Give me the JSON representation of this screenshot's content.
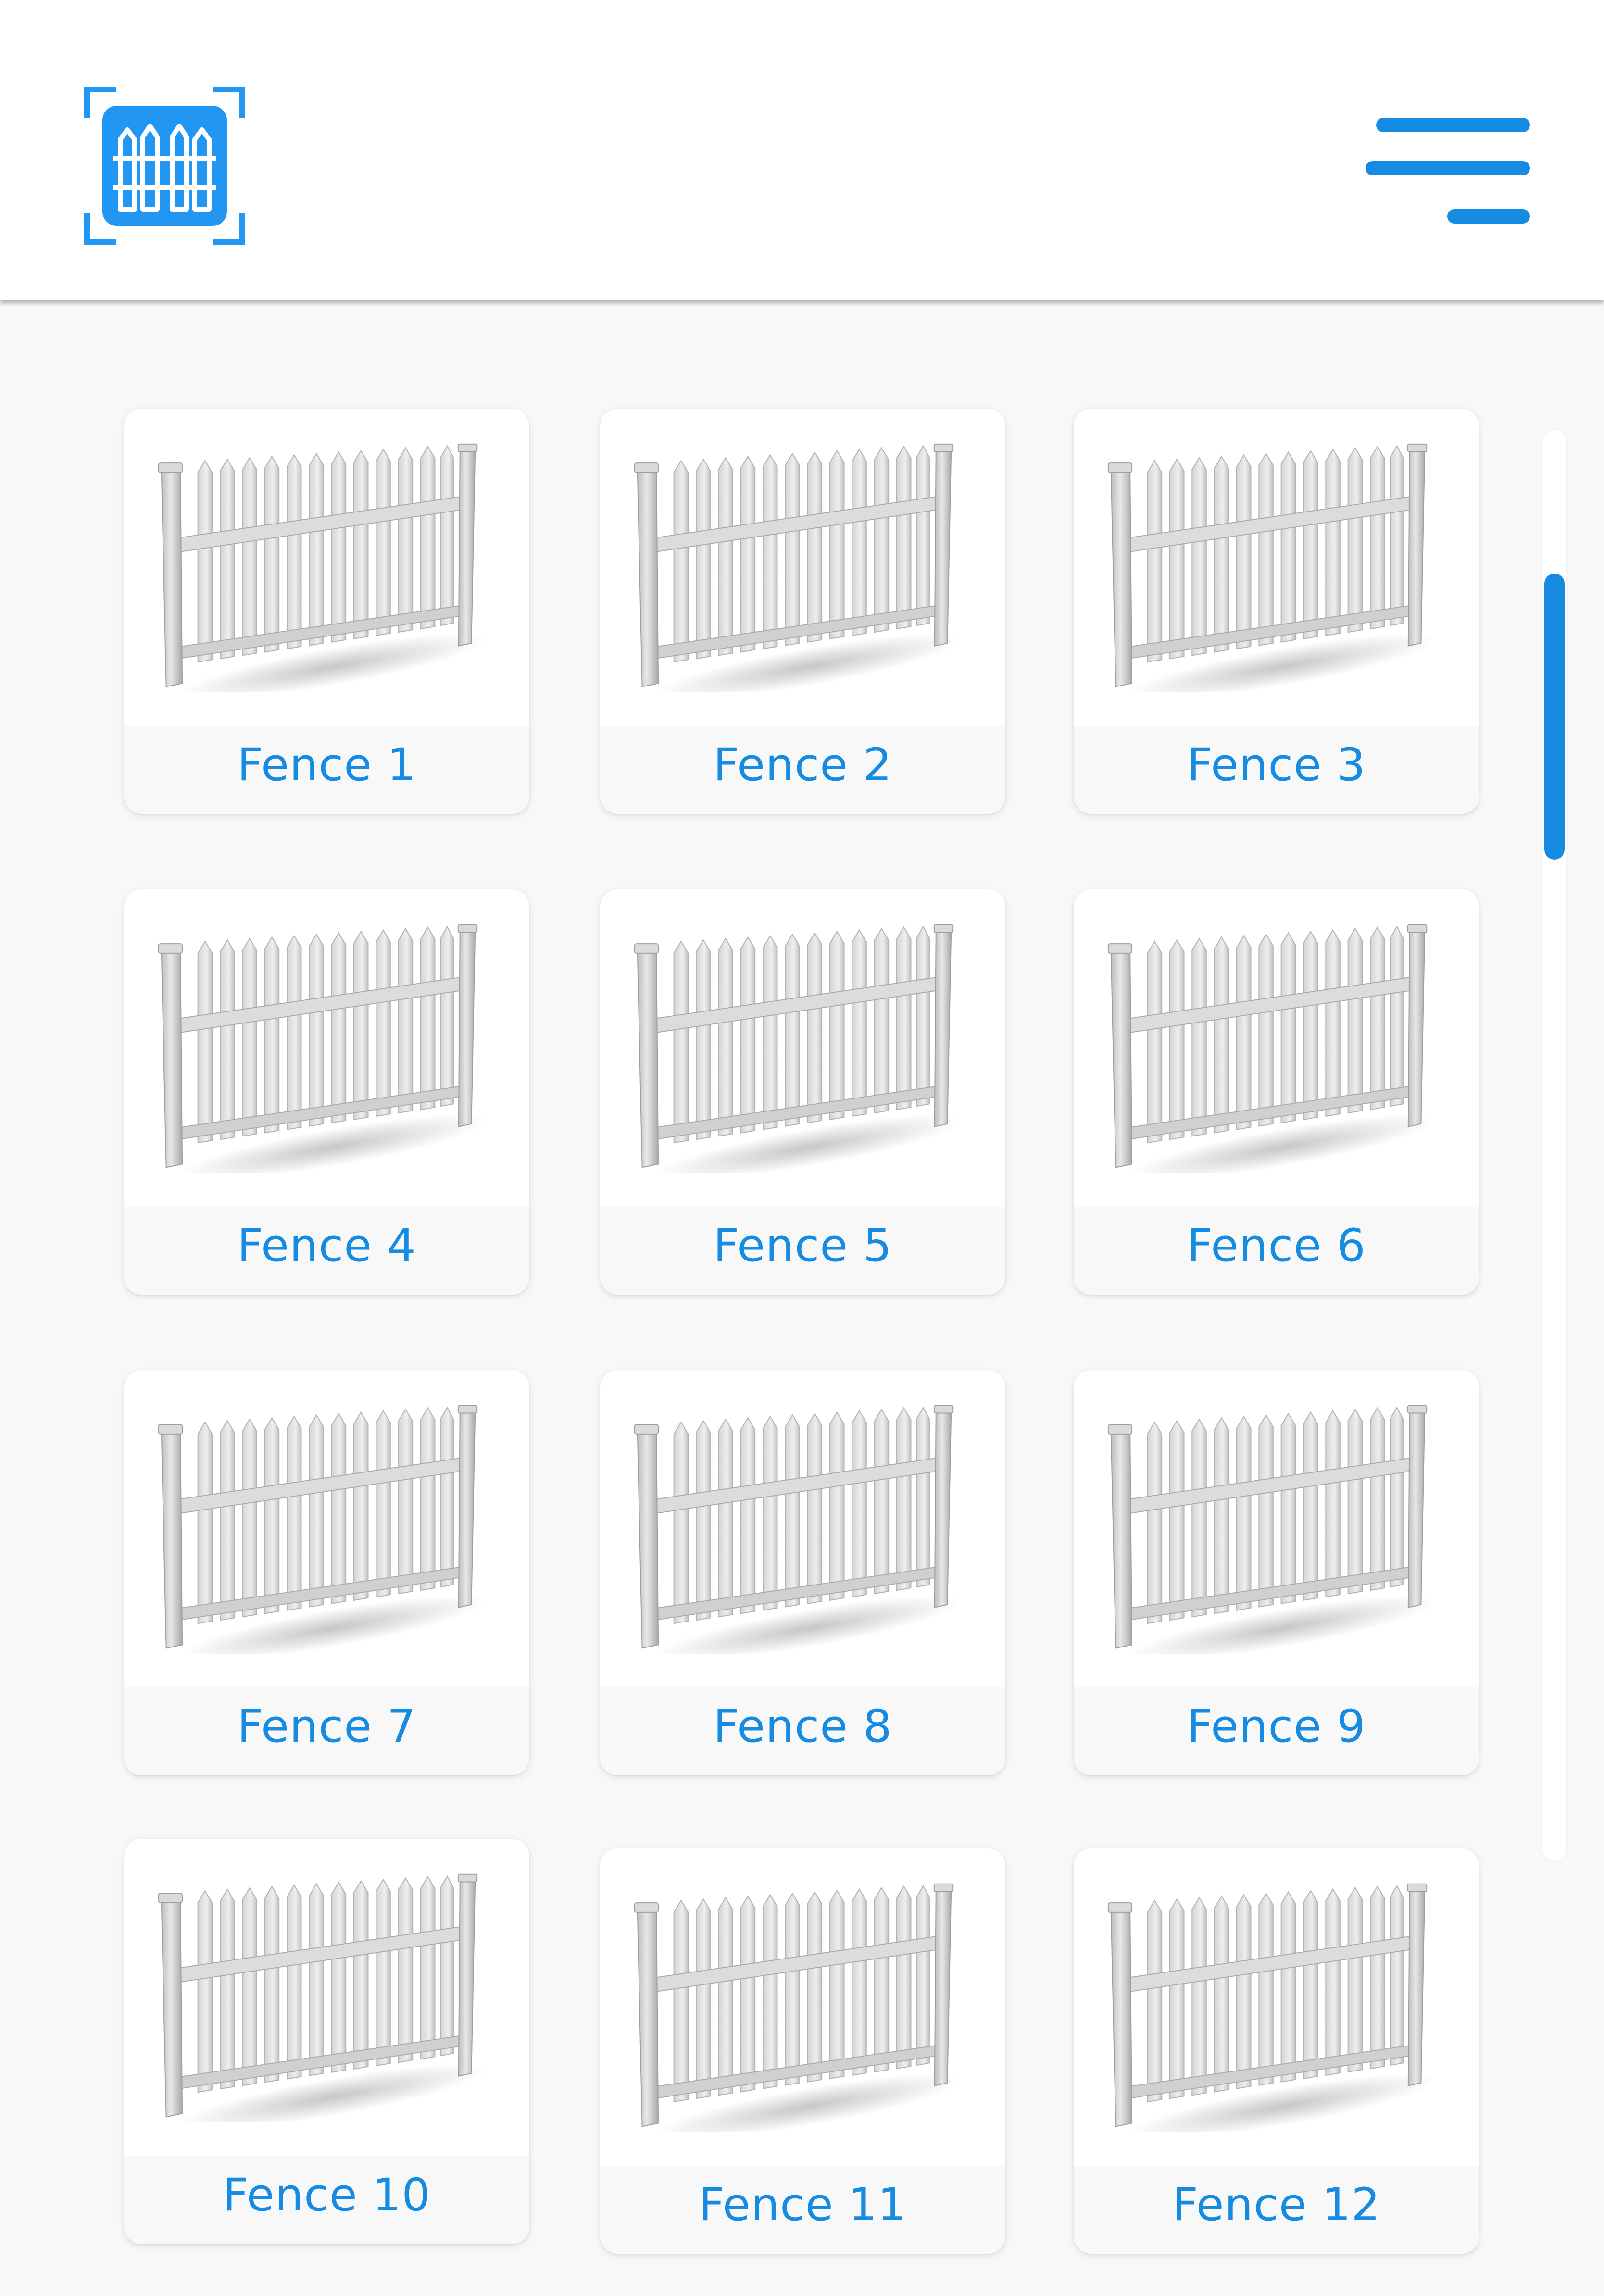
{
  "theme": {
    "accent": "#168BE2",
    "logo_fill": "#2196F3"
  },
  "header": {
    "logo_icon": "fence-scan-logo-icon",
    "menu_icon": "hamburger-menu-icon"
  },
  "fences": [
    {
      "label": "Fence 1"
    },
    {
      "label": "Fence 2"
    },
    {
      "label": "Fence 3"
    },
    {
      "label": "Fence 4"
    },
    {
      "label": "Fence 5"
    },
    {
      "label": "Fence 6"
    },
    {
      "label": "Fence 7"
    },
    {
      "label": "Fence 8"
    },
    {
      "label": "Fence 9"
    },
    {
      "label": "Fence 10"
    },
    {
      "label": "Fence 11"
    },
    {
      "label": "Fence 12"
    }
  ],
  "scroll": {
    "position_fraction": 0.1,
    "visible_fraction": 0.2
  }
}
